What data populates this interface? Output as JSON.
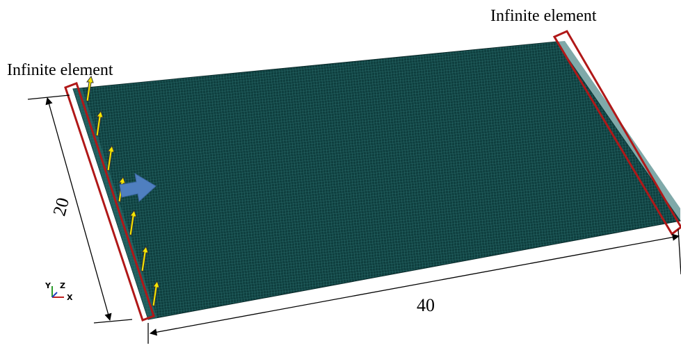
{
  "annotations": [
    {
      "label": "Infinite element"
    },
    {
      "label": "Infinite element"
    }
  ],
  "dimensions": [
    {
      "label": "20"
    },
    {
      "label": "40"
    }
  ],
  "axes": {
    "y": "Y",
    "z": "Z",
    "x": "X"
  }
}
